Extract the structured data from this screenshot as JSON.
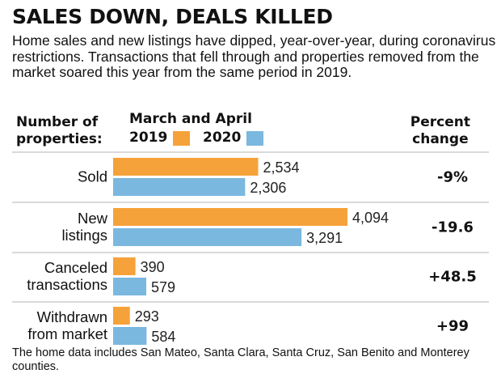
{
  "title": "SALES DOWN, DEALS KILLED",
  "subtitle": "Home sales and new listings have dipped, year-over-year, during coronavirus restrictions. Transactions that fell through and properties removed from the market soared this year from the same period in 2019.",
  "header_left": [
    "Number of",
    "properties:"
  ],
  "header_mid": "March and April",
  "header_right": [
    "Percent",
    "change"
  ],
  "footnote": "The home data includes San Mateo, Santa Clara, Santa Cruz, San Benito and Monterey counties.",
  "colors": {
    "2019": "#f6a23a",
    "2020": "#7ab8df",
    "divider": "#b3b3b3"
  },
  "chart_data": {
    "type": "bar",
    "orientation": "horizontal",
    "series": [
      {
        "name": "2019",
        "values": [
          2534,
          4094,
          390,
          293
        ],
        "labels": [
          "2,534",
          "4,094",
          "390",
          "293"
        ]
      },
      {
        "name": "2020",
        "values": [
          2306,
          3291,
          579,
          584
        ],
        "labels": [
          "2,306",
          "3,291",
          "579",
          "584"
        ]
      }
    ],
    "categories": [
      {
        "lines": [
          "Sold"
        ],
        "change": "-9%"
      },
      {
        "lines": [
          "New",
          "listings"
        ],
        "change": "-19.6"
      },
      {
        "lines": [
          "Canceled",
          "transactions"
        ],
        "change": "+48.5"
      },
      {
        "lines": [
          "Withdrawn",
          "from market"
        ],
        "change": "+99"
      }
    ]
  }
}
